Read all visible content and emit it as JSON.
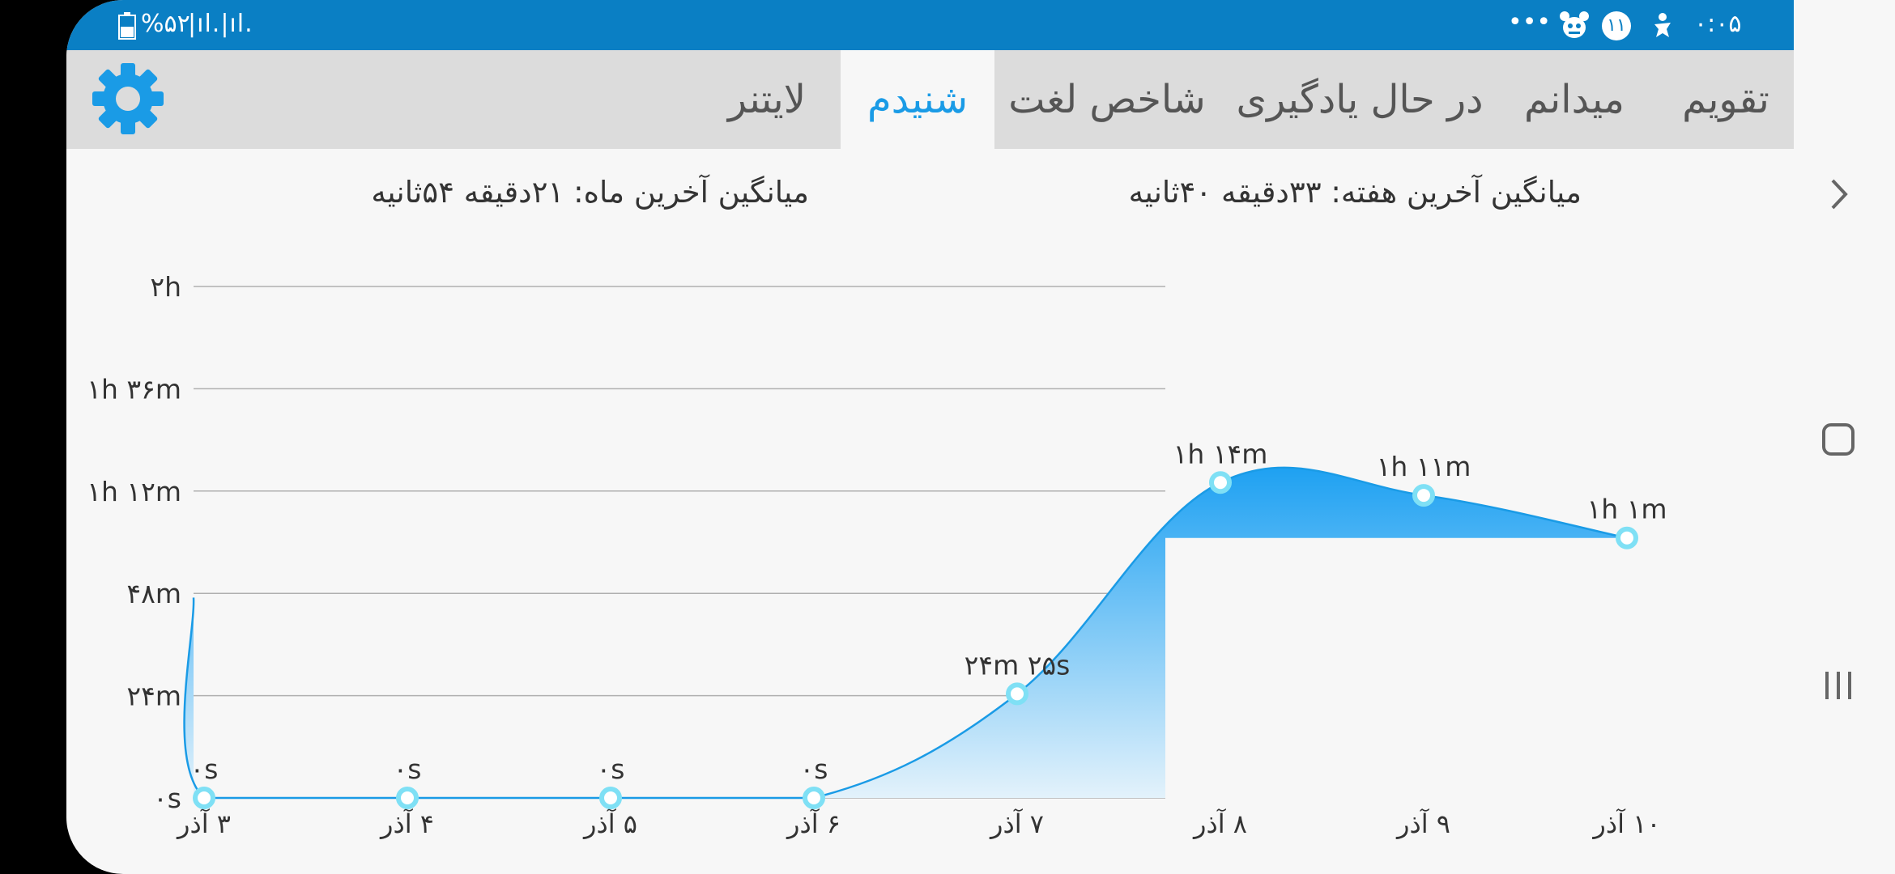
{
  "status_bar": {
    "time": "۰:۰۵",
    "notification_count": "۱۱",
    "more": "•••",
    "battery": "%۵۲",
    "signal": "|ıl.|ıl."
  },
  "tabs": [
    {
      "label": "تقویم",
      "active": false
    },
    {
      "label": "میدانم",
      "active": false
    },
    {
      "label": "در حال یادگیری",
      "active": false
    },
    {
      "label": "شاخص لغت",
      "active": false
    },
    {
      "label": "شنیدم",
      "active": true
    },
    {
      "label": "لایتنر",
      "active": false
    }
  ],
  "stats": {
    "week_avg": "میانگین آخرین هفته: ۳۳دقیقه  ۴۰ثانیه",
    "month_avg": "میانگین آخرین ماه: ۲۱دقیقه  ۵۴ثانیه"
  },
  "colors": {
    "accent": "#1a9be6",
    "status_bar": "#0a7fc4",
    "area_top": "#1ea1f2",
    "area_bottom": "#e3f2fb",
    "marker": "#7fe0f5"
  },
  "chart_data": {
    "type": "area",
    "y_unit": "minutes",
    "ylim": [
      0,
      120
    ],
    "y_ticks": [
      {
        "value": 0,
        "label": "۰s"
      },
      {
        "value": 24,
        "label": "۲۴m"
      },
      {
        "value": 48,
        "label": "۴۸m"
      },
      {
        "value": 72,
        "label": "۱h ۱۲m"
      },
      {
        "value": 96,
        "label": "۱h ۳۶m"
      },
      {
        "value": 120,
        "label": "۲h"
      }
    ],
    "grid": true,
    "leading_value": 47,
    "categories": [
      "۳ آذر",
      "۴ آذر",
      "۵ آذر",
      "۶ آذر",
      "۷ آذر",
      "۸ آذر",
      "۹ آذر",
      "۱۰ آذر"
    ],
    "values": [
      0,
      0,
      0,
      0,
      24.42,
      74,
      71,
      61
    ],
    "data_labels": [
      "۰s",
      "۰s",
      "۰s",
      "۰s",
      "۲۴m ۲۵s",
      "۱h ۱۴m",
      "۱h ۱۱m",
      "۱h ۱m"
    ]
  }
}
